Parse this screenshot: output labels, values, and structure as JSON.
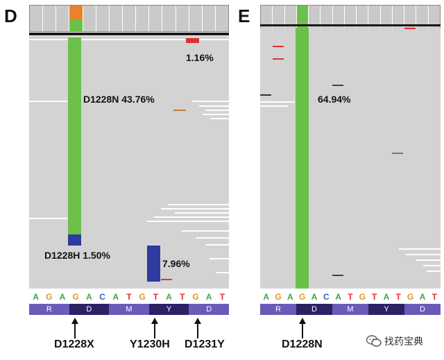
{
  "panel_d": {
    "letter": "D",
    "labels": {
      "d1228n": "D1228N 43.76%",
      "small_pct": "1.16%",
      "d1228h": "D1228H 1.50%",
      "y1230h_pct": "7.96%"
    },
    "sequence": [
      "A",
      "G",
      "A",
      "G",
      "A",
      "C",
      "A",
      "T",
      "G",
      "T",
      "A",
      "T",
      "G",
      "A",
      "T"
    ],
    "amino_acids": [
      "R",
      "D",
      "M",
      "Y",
      "D"
    ],
    "bottom_labels": {
      "d1228x": "D1228X",
      "y1230h": "Y1230H",
      "d1231y": "D1231Y"
    }
  },
  "panel_e": {
    "letter": "E",
    "labels": {
      "d1228n": "64.94%"
    },
    "sequence": [
      "A",
      "G",
      "A",
      "G",
      "A",
      "C",
      "A",
      "T",
      "G",
      "T",
      "A",
      "T",
      "G",
      "A",
      "T"
    ],
    "amino_acids": [
      "R",
      "D",
      "M",
      "Y",
      "D"
    ],
    "bottom_labels": {
      "d1228n": "D1228N"
    }
  },
  "watermark": {
    "text": "找药宝典"
  },
  "colors": {
    "read_gray": "#d3d3d3",
    "mutation_green": "#6cc04a",
    "mutation_blue": "#2d3a9e",
    "mutation_orange": "#e8832a",
    "mutation_red": "#e03030",
    "base_A": "#3aa84a",
    "base_G": "#e0922a",
    "base_C": "#3060c8",
    "base_T": "#d83030"
  }
}
